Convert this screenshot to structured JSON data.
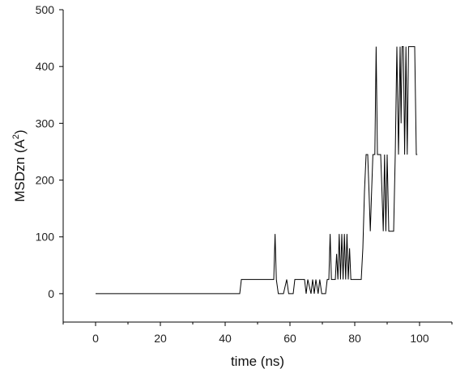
{
  "chart_data": {
    "type": "line",
    "xlabel": "time (ns)",
    "ylabel": {
      "prefix": "MSDzn (A",
      "sup": "2",
      "suffix": ")"
    },
    "xlim": [
      -10,
      110
    ],
    "ylim": [
      -50,
      500
    ],
    "xticks": [
      0,
      20,
      40,
      60,
      80,
      100
    ],
    "yticks": [
      0,
      100,
      200,
      300,
      400,
      500
    ],
    "grid": false,
    "line_color": "#000000",
    "series": [
      {
        "values": [
          [
            0,
            0
          ],
          [
            44.5,
            0
          ],
          [
            45,
            25
          ],
          [
            55,
            25
          ],
          [
            55.4,
            105
          ],
          [
            55.8,
            25
          ],
          [
            56.4,
            0
          ],
          [
            58,
            0
          ],
          [
            59,
            25
          ],
          [
            59.6,
            0
          ],
          [
            61,
            0
          ],
          [
            61.5,
            25
          ],
          [
            64.5,
            25
          ],
          [
            65,
            0
          ],
          [
            65.5,
            25
          ],
          [
            66.5,
            0
          ],
          [
            67,
            25
          ],
          [
            67.5,
            0
          ],
          [
            68,
            25
          ],
          [
            68.7,
            0
          ],
          [
            69.2,
            25
          ],
          [
            69.8,
            0
          ],
          [
            71,
            0
          ],
          [
            71.5,
            25
          ],
          [
            72,
            25
          ],
          [
            72.4,
            105
          ],
          [
            72.8,
            25
          ],
          [
            74,
            25
          ],
          [
            74.4,
            70
          ],
          [
            74.8,
            25
          ],
          [
            75.2,
            105
          ],
          [
            75.6,
            25
          ],
          [
            76,
            105
          ],
          [
            76.4,
            25
          ],
          [
            76.8,
            105
          ],
          [
            77.2,
            25
          ],
          [
            77.6,
            105
          ],
          [
            78,
            25
          ],
          [
            78.4,
            80
          ],
          [
            78.8,
            25
          ],
          [
            79.3,
            25
          ],
          [
            82,
            25
          ],
          [
            82.5,
            80
          ],
          [
            83,
            180
          ],
          [
            83.5,
            245
          ],
          [
            84,
            245
          ],
          [
            84.4,
            180
          ],
          [
            84.8,
            110
          ],
          [
            85.2,
            180
          ],
          [
            85.6,
            245
          ],
          [
            86.2,
            245
          ],
          [
            86.6,
            435
          ],
          [
            87,
            245
          ],
          [
            88,
            245
          ],
          [
            88.4,
            180
          ],
          [
            88.8,
            110
          ],
          [
            89.2,
            245
          ],
          [
            89.6,
            110
          ],
          [
            90,
            245
          ],
          [
            90.5,
            110
          ],
          [
            92,
            110
          ],
          [
            92.5,
            245
          ],
          [
            93,
            435
          ],
          [
            93.5,
            245
          ],
          [
            94,
            435
          ],
          [
            94.3,
            300
          ],
          [
            94.6,
            435
          ],
          [
            95,
            435
          ],
          [
            95.4,
            245
          ],
          [
            95.8,
            435
          ],
          [
            96.2,
            245
          ],
          [
            96.6,
            435
          ],
          [
            97,
            435
          ],
          [
            98.5,
            435
          ],
          [
            99,
            245
          ],
          [
            99.3,
            245
          ]
        ]
      }
    ]
  }
}
